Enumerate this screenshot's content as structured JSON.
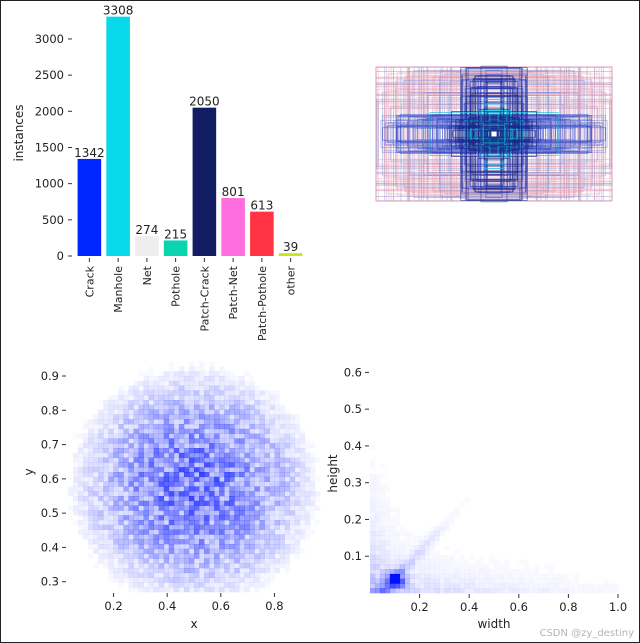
{
  "chart_data": [
    {
      "type": "bar",
      "ylabel": "instances",
      "ylim": [
        0,
        3400
      ],
      "yticks": [
        0,
        500,
        1000,
        1500,
        2000,
        2500,
        3000
      ],
      "categories": [
        "Crack",
        "Manhole",
        "Net",
        "Pothole",
        "Patch-Crack",
        "Patch-Net",
        "Patch-Pothole",
        "other"
      ],
      "values": [
        1342,
        3308,
        274,
        215,
        2050,
        801,
        613,
        39
      ],
      "colors": [
        "#0026ff",
        "#08d9ea",
        "#eeeeee",
        "#0ad4ae",
        "#121c63",
        "#ff6ddf",
        "#ff3344",
        "#c8e61e"
      ]
    },
    {
      "type": "boxes",
      "description_free": true,
      "colors": [
        "#e8a0b4",
        "#7f8fd6",
        "#3347c8",
        "#1c2a8a"
      ]
    },
    {
      "type": "heatmap",
      "xlabel": "x",
      "ylabel": "y",
      "xlim": [
        0.03,
        0.97
      ],
      "ylim": [
        0.27,
        0.97
      ],
      "xticks": [
        0.2,
        0.4,
        0.6,
        0.8
      ],
      "yticks": [
        0.3,
        0.4,
        0.5,
        0.6,
        0.7,
        0.8,
        0.9
      ],
      "color": "#0010ff"
    },
    {
      "type": "heatmap",
      "xlabel": "width",
      "ylabel": "height",
      "xlim": [
        0,
        1.0
      ],
      "ylim": [
        0,
        0.65
      ],
      "xticks": [
        0.2,
        0.4,
        0.6,
        0.8,
        1.0
      ],
      "yticks": [
        0.1,
        0.2,
        0.3,
        0.4,
        0.5,
        0.6
      ],
      "color": "#0010ff"
    }
  ],
  "watermark": "CSDN @zy_destiny"
}
